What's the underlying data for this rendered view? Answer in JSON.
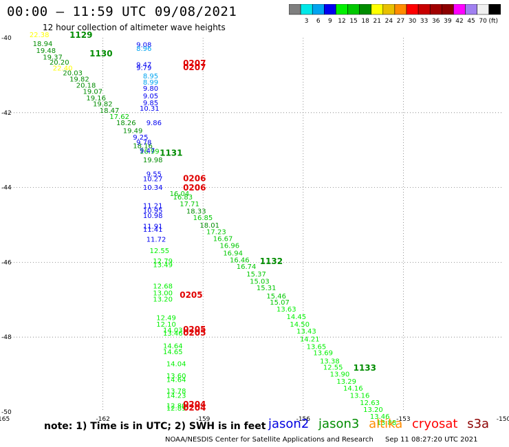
{
  "header": {
    "title": "00:00 – 11:59 UTC 09/08/2021",
    "subtitle": "12 hour collection of altimeter wave heights"
  },
  "colorbar": {
    "colors": [
      "#7f7f7f",
      "#00e8e8",
      "#00a4f0",
      "#0000f0",
      "#00f000",
      "#00c800",
      "#008c00",
      "#ffff00",
      "#e8c000",
      "#ff8c00",
      "#ff0000",
      "#c80000",
      "#a00000",
      "#8c0000",
      "#ff00ff",
      "#a080f0",
      "#f0f0f0",
      "#000000"
    ],
    "labels": [
      "3",
      "6",
      "9",
      "12",
      "15",
      "18",
      "21",
      "24",
      "27",
      "30",
      "33",
      "36",
      "39",
      "42",
      "45",
      "70"
    ],
    "unit": "(ft)"
  },
  "note": "note:  1) Time is in UTC;  2) SWH is in feet",
  "legend": [
    {
      "name": "jason2",
      "color": "#0000e0"
    },
    {
      "name": "jason3",
      "color": "#008c00"
    },
    {
      "name": "altika",
      "color": "#ff8c00"
    },
    {
      "name": "cryosat",
      "color": "#ff0000"
    },
    {
      "name": "s3a",
      "color": "#8c0000"
    }
  ],
  "footer": {
    "agency": "NOAA/NESDIS Center for Satellite Applications and Research",
    "timestamp": "Sep 11 08:27:20 UTC 2021"
  },
  "chart_data": {
    "type": "scatter",
    "title": "00:00 – 11:59 UTC 09/08/2021",
    "xlim": [
      -165,
      -150
    ],
    "ylim": [
      -50,
      -40
    ],
    "x_ticks": [
      "-165",
      "-162",
      "-159",
      "-156",
      "-153",
      "-150"
    ],
    "y_ticks": [
      "-40",
      "-42",
      "-44",
      "-46",
      "-48",
      "-50"
    ],
    "grid": true,
    "value_unit": "ft",
    "series": [
      {
        "name": "jason3",
        "color_key": "swh",
        "points": [
          {
            "lon": -164.1,
            "lat": -40.22,
            "v": "18.94"
          },
          {
            "lon": -164.0,
            "lat": -40.4,
            "v": "19.48"
          },
          {
            "lon": -163.8,
            "lat": -40.58,
            "v": "19.37"
          },
          {
            "lon": -163.6,
            "lat": -40.72,
            "v": "20.20"
          },
          {
            "lon": -163.2,
            "lat": -41.0,
            "v": "20.03"
          },
          {
            "lon": -163.0,
            "lat": -41.17,
            "v": "19.82"
          },
          {
            "lon": -162.8,
            "lat": -41.33,
            "v": "20.18"
          },
          {
            "lon": -162.6,
            "lat": -41.5,
            "v": "19.07"
          },
          {
            "lon": -162.5,
            "lat": -41.67,
            "v": "19.16"
          },
          {
            "lon": -162.3,
            "lat": -41.83,
            "v": "19.82"
          },
          {
            "lon": -162.1,
            "lat": -42.0,
            "v": "18.47"
          },
          {
            "lon": -161.8,
            "lat": -42.17,
            "v": "17.62"
          },
          {
            "lon": -161.6,
            "lat": -42.33,
            "v": "18.26"
          },
          {
            "lon": -161.4,
            "lat": -42.55,
            "v": "19.49"
          },
          {
            "lon": -161.1,
            "lat": -42.95,
            "v": "18.16"
          },
          {
            "lon": -160.9,
            "lat": -43.1,
            "v": "16.99"
          },
          {
            "lon": -160.8,
            "lat": -43.33,
            "v": "19.98"
          },
          {
            "lon": -160.0,
            "lat": -44.23,
            "v": "16.04"
          },
          {
            "lon": -159.9,
            "lat": -44.32,
            "v": "16.83"
          },
          {
            "lon": -159.7,
            "lat": -44.5,
            "v": "17.71"
          },
          {
            "lon": -159.5,
            "lat": -44.7,
            "v": "18.33"
          },
          {
            "lon": -159.3,
            "lat": -44.87,
            "v": "16.85"
          },
          {
            "lon": -159.1,
            "lat": -45.07,
            "v": "18.01"
          },
          {
            "lon": -158.9,
            "lat": -45.25,
            "v": "17.23"
          },
          {
            "lon": -158.7,
            "lat": -45.43,
            "v": "16.67"
          },
          {
            "lon": -158.5,
            "lat": -45.62,
            "v": "16.96"
          },
          {
            "lon": -158.4,
            "lat": -45.82,
            "v": "16.94"
          },
          {
            "lon": -158.2,
            "lat": -46.0,
            "v": "16.46"
          },
          {
            "lon": -158.0,
            "lat": -46.18,
            "v": "16.74"
          },
          {
            "lon": -157.7,
            "lat": -46.38,
            "v": "15.37"
          },
          {
            "lon": -157.6,
            "lat": -46.57,
            "v": "15.03"
          },
          {
            "lon": -157.4,
            "lat": -46.75,
            "v": "15.31"
          },
          {
            "lon": -157.1,
            "lat": -46.97,
            "v": "15.46"
          },
          {
            "lon": -157.0,
            "lat": -47.13,
            "v": "15.07"
          },
          {
            "lon": -156.8,
            "lat": -47.32,
            "v": "13.63"
          },
          {
            "lon": -156.5,
            "lat": -47.52,
            "v": "14.45"
          },
          {
            "lon": -156.4,
            "lat": -47.72,
            "v": "14.50"
          },
          {
            "lon": -156.2,
            "lat": -47.9,
            "v": "13.43"
          },
          {
            "lon": -156.1,
            "lat": -48.12,
            "v": "14.21"
          },
          {
            "lon": -155.9,
            "lat": -48.32,
            "v": "13.65"
          },
          {
            "lon": -155.7,
            "lat": -48.48,
            "v": "13.69"
          },
          {
            "lon": -155.5,
            "lat": -48.7,
            "v": "13.38"
          },
          {
            "lon": -155.4,
            "lat": -48.87,
            "v": "12.55"
          },
          {
            "lon": -155.2,
            "lat": -49.05,
            "v": "13.90"
          },
          {
            "lon": -155.0,
            "lat": -49.25,
            "v": "13.29"
          },
          {
            "lon": -154.8,
            "lat": -49.43,
            "v": "14.16"
          },
          {
            "lon": -154.6,
            "lat": -49.62,
            "v": "13.16"
          },
          {
            "lon": -154.3,
            "lat": -49.82,
            "v": "12.63"
          },
          {
            "lon": -154.2,
            "lat": -50.0,
            "v": "13.20"
          },
          {
            "lon": -154.0,
            "lat": -50.18,
            "v": "13.46"
          },
          {
            "lon": -153.8,
            "lat": -50.35,
            "v": "13.88"
          }
        ],
        "time_labels": [
          {
            "lon": -163.0,
            "lat": -40.0,
            "t": "1129"
          },
          {
            "lon": -162.4,
            "lat": -40.5,
            "t": "1130"
          },
          {
            "lon": -160.3,
            "lat": -43.15,
            "t": "1131"
          },
          {
            "lon": -157.3,
            "lat": -46.05,
            "t": "1132"
          },
          {
            "lon": -154.5,
            "lat": -48.9,
            "t": "1133"
          }
        ]
      },
      {
        "name": "altika",
        "color_key": "swh",
        "points": [
          {
            "lon": -164.2,
            "lat": -39.98,
            "v": "22.38"
          },
          {
            "lon": -163.5,
            "lat": -40.87,
            "v": "22.40"
          }
        ]
      },
      {
        "name": "jason2",
        "color_key": "swh",
        "points": [
          {
            "lon": -161.0,
            "lat": -40.25,
            "v": "9.08"
          },
          {
            "lon": -161.0,
            "lat": -40.35,
            "v": "8.96"
          },
          {
            "lon": -161.0,
            "lat": -40.78,
            "v": "9.47"
          },
          {
            "lon": -161.0,
            "lat": -40.86,
            "v": "9.79"
          },
          {
            "lon": -160.8,
            "lat": -41.08,
            "v": "8.95"
          },
          {
            "lon": -160.8,
            "lat": -41.25,
            "v": "8.99"
          },
          {
            "lon": -160.8,
            "lat": -41.42,
            "v": "9.80"
          },
          {
            "lon": -160.8,
            "lat": -41.62,
            "v": "9.05"
          },
          {
            "lon": -160.8,
            "lat": -41.8,
            "v": "9.85"
          },
          {
            "lon": -160.9,
            "lat": -41.95,
            "v": "10.31"
          },
          {
            "lon": -160.7,
            "lat": -42.33,
            "v": "9.86"
          },
          {
            "lon": -161.1,
            "lat": -42.72,
            "v": "9.25"
          },
          {
            "lon": -161.0,
            "lat": -42.86,
            "v": "9.78"
          },
          {
            "lon": -160.9,
            "lat": -43.08,
            "v": "9.47"
          },
          {
            "lon": -160.7,
            "lat": -43.7,
            "v": "9.55"
          },
          {
            "lon": -160.8,
            "lat": -43.83,
            "v": "10.27"
          },
          {
            "lon": -160.8,
            "lat": -44.06,
            "v": "10.34"
          },
          {
            "lon": -160.8,
            "lat": -44.55,
            "v": "11.21"
          },
          {
            "lon": -160.8,
            "lat": -44.68,
            "v": "10.95"
          },
          {
            "lon": -160.8,
            "lat": -44.82,
            "v": "10.98"
          },
          {
            "lon": -160.8,
            "lat": -45.1,
            "v": "11.91"
          },
          {
            "lon": -160.8,
            "lat": -45.18,
            "v": "11.41"
          },
          {
            "lon": -160.7,
            "lat": -45.45,
            "v": "11.72"
          }
        ]
      },
      {
        "name": "jason3",
        "track": "southern",
        "color_key": "swh",
        "points": [
          {
            "lon": -160.6,
            "lat": -45.75,
            "v": "12.55"
          },
          {
            "lon": -160.5,
            "lat": -46.03,
            "v": "12.79"
          },
          {
            "lon": -160.5,
            "lat": -46.13,
            "v": "13.49"
          },
          {
            "lon": -160.5,
            "lat": -46.7,
            "v": "12.68"
          },
          {
            "lon": -160.5,
            "lat": -46.88,
            "v": "13.00"
          },
          {
            "lon": -160.5,
            "lat": -47.05,
            "v": "13.20"
          },
          {
            "lon": -160.4,
            "lat": -47.55,
            "v": "12.49"
          },
          {
            "lon": -160.4,
            "lat": -47.72,
            "v": "12.10"
          },
          {
            "lon": -160.2,
            "lat": -47.88,
            "v": "14.03"
          },
          {
            "lon": -160.2,
            "lat": -47.96,
            "v": "13.46"
          },
          {
            "lon": -160.2,
            "lat": -48.3,
            "v": "14.64"
          },
          {
            "lon": -160.2,
            "lat": -48.46,
            "v": "14.65"
          },
          {
            "lon": -160.1,
            "lat": -48.78,
            "v": "14.04"
          },
          {
            "lon": -160.1,
            "lat": -49.1,
            "v": "13.60"
          },
          {
            "lon": -160.1,
            "lat": -49.2,
            "v": "14.64"
          },
          {
            "lon": -160.1,
            "lat": -49.5,
            "v": "13.78"
          },
          {
            "lon": -160.1,
            "lat": -49.62,
            "v": "14.23"
          },
          {
            "lon": -160.1,
            "lat": -49.9,
            "v": "12.80"
          },
          {
            "lon": -160.1,
            "lat": -49.96,
            "v": "12.89"
          }
        ]
      },
      {
        "name": "cryosat",
        "color_key": "swh",
        "time_labels": [
          {
            "lon": -159.6,
            "lat": -40.75,
            "t": "0207"
          },
          {
            "lon": -159.6,
            "lat": -40.86,
            "t": "0207"
          },
          {
            "lon": -159.6,
            "lat": -43.83,
            "t": "0206"
          },
          {
            "lon": -159.6,
            "lat": -44.08,
            "t": "0206"
          },
          {
            "lon": -159.7,
            "lat": -46.95,
            "t": "0205"
          },
          {
            "lon": -159.6,
            "lat": -47.87,
            "t": "0205"
          },
          {
            "lon": -159.6,
            "lat": -47.96,
            "t": "0205"
          },
          {
            "lon": -159.6,
            "lat": -49.87,
            "t": "0204"
          },
          {
            "lon": -159.6,
            "lat": -49.96,
            "t": "0204"
          }
        ]
      }
    ]
  }
}
